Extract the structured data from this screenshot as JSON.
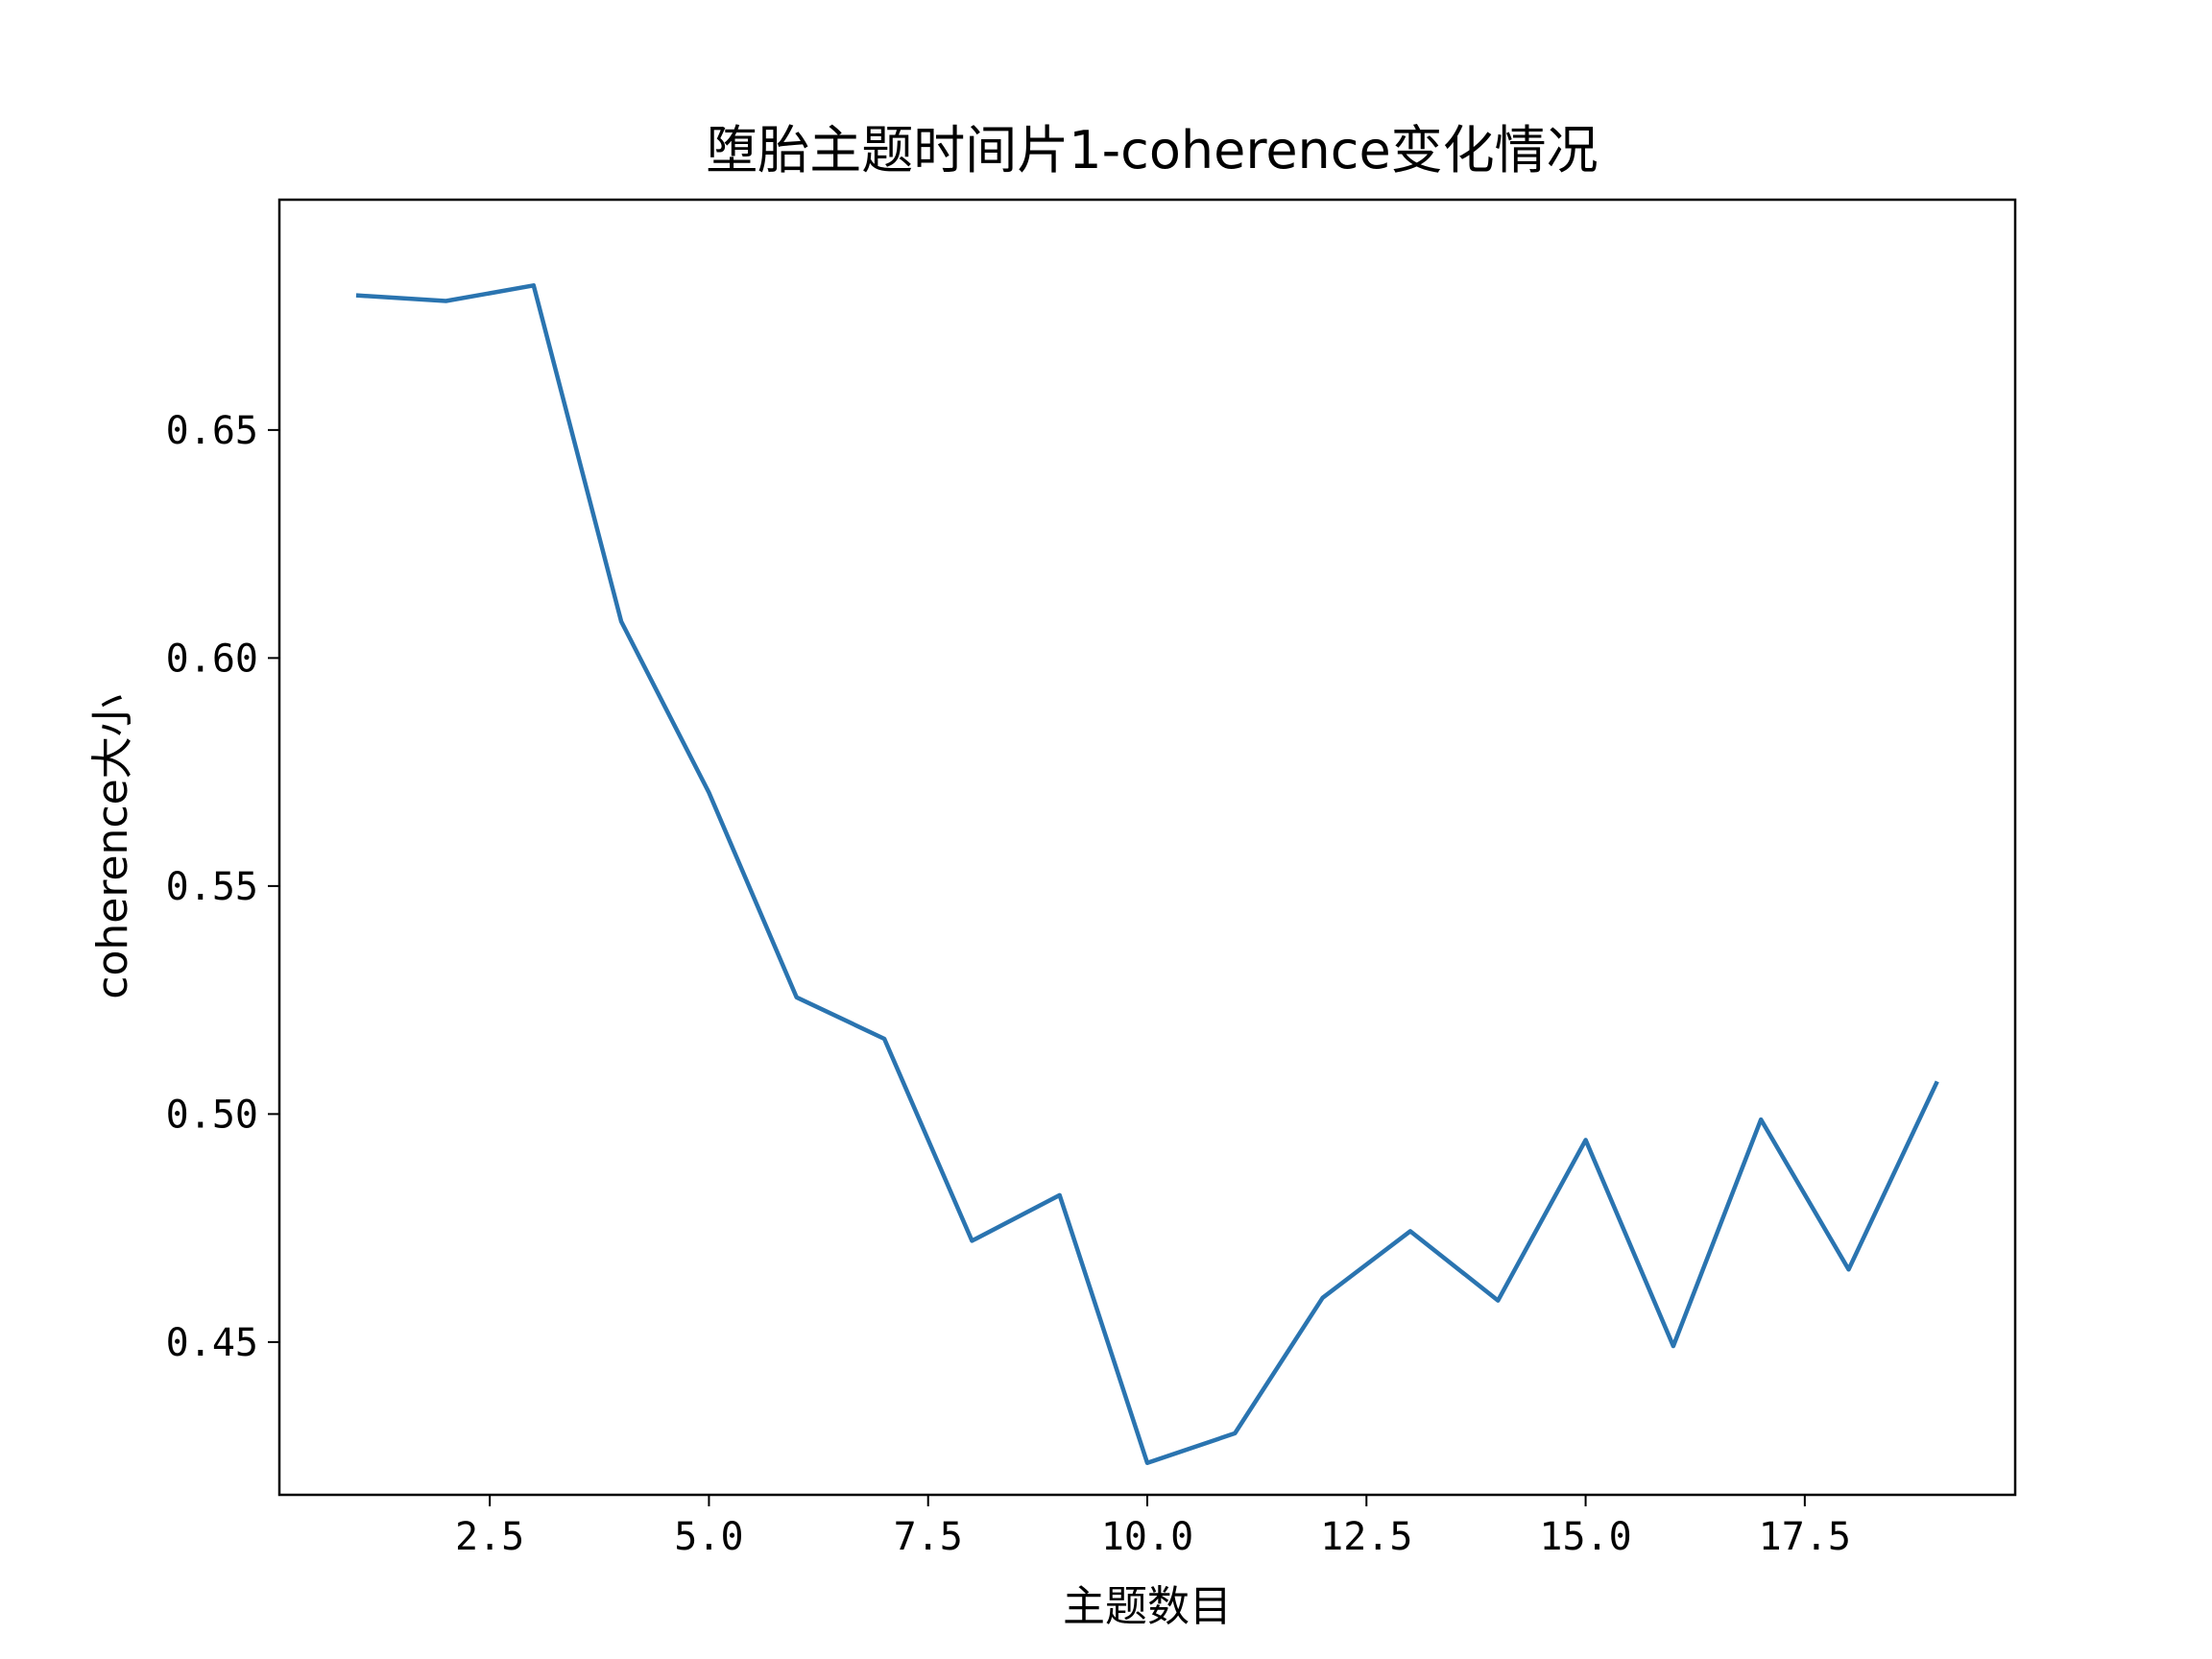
{
  "chart_data": {
    "type": "line",
    "title": "堕胎主题时间片1-coherence变化情况",
    "xlabel": "主题数目",
    "ylabel": "coherence大小",
    "xlim": [
      0.1,
      19.9
    ],
    "ylim": [
      0.4165,
      0.7005
    ],
    "xticks": [
      2.5,
      5.0,
      7.5,
      10.0,
      12.5,
      15.0,
      17.5
    ],
    "xtick_labels": [
      "2.5",
      "5.0",
      "7.5",
      "10.0",
      "12.5",
      "15.0",
      "17.5"
    ],
    "yticks": [
      0.45,
      0.5,
      0.55,
      0.6,
      0.65
    ],
    "ytick_labels": [
      "0.45",
      "0.50",
      "0.55",
      "0.60",
      "0.65"
    ],
    "grid": false,
    "line_color": "#2a74b0",
    "series": [
      {
        "x": [
          1,
          2,
          3,
          4,
          5,
          6,
          7,
          8,
          9,
          10,
          11,
          12,
          13,
          14,
          15,
          16,
          17,
          18,
          19
        ],
        "values": [
          0.6795,
          0.6783,
          0.6817,
          0.608,
          0.5705,
          0.5256,
          0.5165,
          0.4722,
          0.4822,
          0.4235,
          0.43,
          0.4597,
          0.4743,
          0.4591,
          0.4943,
          0.4491,
          0.4988,
          0.4659,
          0.5067
        ]
      }
    ]
  }
}
